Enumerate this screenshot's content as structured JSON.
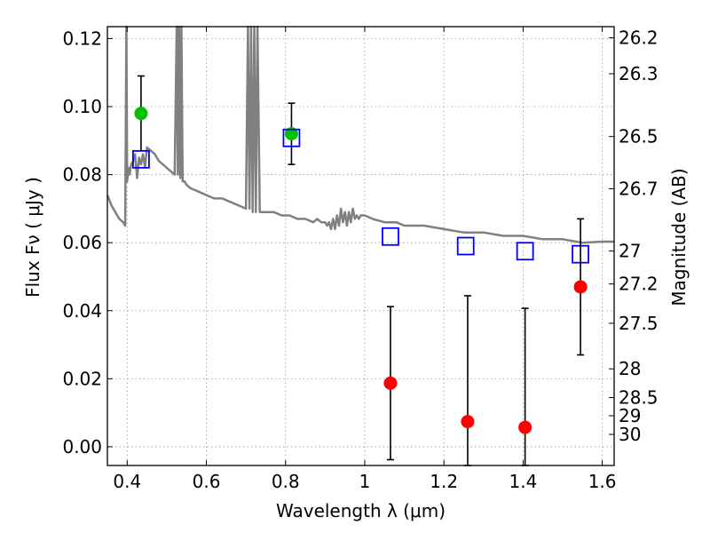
{
  "chart_data": {
    "type": "scatter",
    "xlabel": "Wavelength  λ (μm)",
    "ylabel": "Flux  Fν  ( μJy )",
    "y2label": "Magnitude (AB)",
    "xlim": [
      0.35,
      1.63
    ],
    "ylim": [
      -0.0055,
      0.1235
    ],
    "grid": true,
    "x_ticks": [
      "0.4",
      "0.6",
      "0.8",
      "1",
      "1.2",
      "1.4",
      "1.6"
    ],
    "y_ticks": [
      "0.00",
      "0.02",
      "0.04",
      "0.06",
      "0.08",
      "0.10",
      "0.12"
    ],
    "magnitude_ticks": [
      "26.2",
      "26.3",
      "26.5",
      "26.7",
      "27",
      "27.2",
      "27.5",
      "28",
      "28.5",
      "29",
      "30"
    ],
    "series": [
      {
        "type": "line",
        "color": "#808080",
        "x": [
          0.35,
          0.36,
          0.37,
          0.38,
          0.39,
          0.395,
          0.398,
          0.4,
          0.403,
          0.406,
          0.41,
          0.415,
          0.42,
          0.425,
          0.43,
          0.435,
          0.44,
          0.445,
          0.45,
          0.46,
          0.47,
          0.48,
          0.49,
          0.5,
          0.51,
          0.52,
          0.525,
          0.528,
          0.531,
          0.534,
          0.537,
          0.54,
          0.545,
          0.55,
          0.56,
          0.58,
          0.6,
          0.62,
          0.64,
          0.66,
          0.68,
          0.7,
          0.705,
          0.709,
          0.713,
          0.717,
          0.721,
          0.725,
          0.729,
          0.735,
          0.75,
          0.77,
          0.79,
          0.81,
          0.83,
          0.85,
          0.87,
          0.88,
          0.89,
          0.9,
          0.905,
          0.91,
          0.915,
          0.92,
          0.925,
          0.93,
          0.935,
          0.94,
          0.945,
          0.95,
          0.955,
          0.96,
          0.965,
          0.97,
          0.975,
          0.98,
          0.985,
          0.99,
          1.0,
          1.02,
          1.05,
          1.08,
          1.1,
          1.15,
          1.2,
          1.25,
          1.3,
          1.35,
          1.4,
          1.45,
          1.5,
          1.55,
          1.6,
          1.63
        ],
        "y": [
          0.074,
          0.071,
          0.069,
          0.067,
          0.066,
          0.065,
          0.1235,
          0.078,
          0.082,
          0.08,
          0.083,
          0.084,
          0.086,
          0.079,
          0.085,
          0.083,
          0.086,
          0.082,
          0.088,
          0.087,
          0.086,
          0.084,
          0.083,
          0.082,
          0.081,
          0.08,
          0.1235,
          0.08,
          0.1235,
          0.079,
          0.1235,
          0.078,
          0.078,
          0.077,
          0.076,
          0.075,
          0.074,
          0.073,
          0.073,
          0.072,
          0.071,
          0.07,
          0.1235,
          0.07,
          0.1235,
          0.069,
          0.1235,
          0.069,
          0.1235,
          0.069,
          0.069,
          0.069,
          0.068,
          0.068,
          0.067,
          0.067,
          0.066,
          0.067,
          0.066,
          0.066,
          0.065,
          0.066,
          0.064,
          0.067,
          0.064,
          0.068,
          0.065,
          0.07,
          0.066,
          0.069,
          0.065,
          0.069,
          0.066,
          0.07,
          0.067,
          0.068,
          0.067,
          0.068,
          0.068,
          0.067,
          0.066,
          0.066,
          0.065,
          0.065,
          0.064,
          0.063,
          0.063,
          0.062,
          0.062,
          0.061,
          0.061,
          0.06,
          0.0603,
          0.0603
        ]
      },
      {
        "type": "scatter",
        "marker": "circle",
        "color": "#00c000",
        "x": [
          0.435,
          0.815
        ],
        "y": [
          0.098,
          0.092
        ],
        "err": [
          0.011,
          0.009
        ]
      },
      {
        "type": "scatter",
        "marker": "square-open",
        "color": "#0000ff",
        "x": [
          0.435,
          0.815,
          1.065,
          1.255,
          1.405,
          1.545
        ],
        "y": [
          0.0845,
          0.0908,
          0.0618,
          0.059,
          0.0575,
          0.0566
        ]
      },
      {
        "type": "scatter",
        "marker": "circle",
        "color": "#ff0000",
        "x": [
          1.065,
          1.26,
          1.405,
          1.545
        ],
        "y": [
          0.0187,
          0.0074,
          0.0057,
          0.047
        ],
        "err": [
          0.0225,
          0.037,
          0.035,
          0.02
        ]
      }
    ]
  }
}
